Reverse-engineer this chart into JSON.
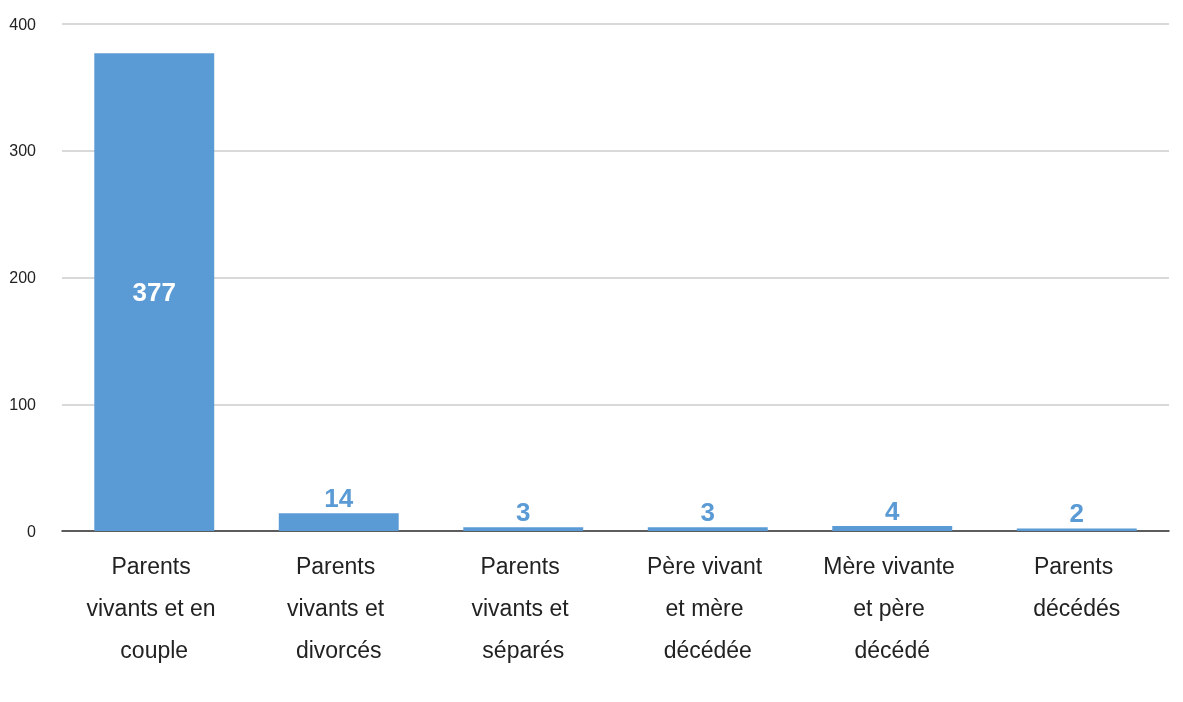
{
  "chart_data": {
    "type": "bar",
    "categories": [
      "Parents vivants et en couple",
      "Parents vivants et divorcés",
      "Parents vivants et séparés",
      "Père vivant et mère décédée",
      "Mère vivante et père décédé",
      "Parents décédés"
    ],
    "values": [
      377,
      14,
      3,
      3,
      4,
      2
    ],
    "color": "#5b9bd5",
    "ylim": [
      0,
      400
    ],
    "yticks": [
      0,
      100,
      200,
      300,
      400
    ],
    "grid": "y",
    "data_labels": true
  }
}
